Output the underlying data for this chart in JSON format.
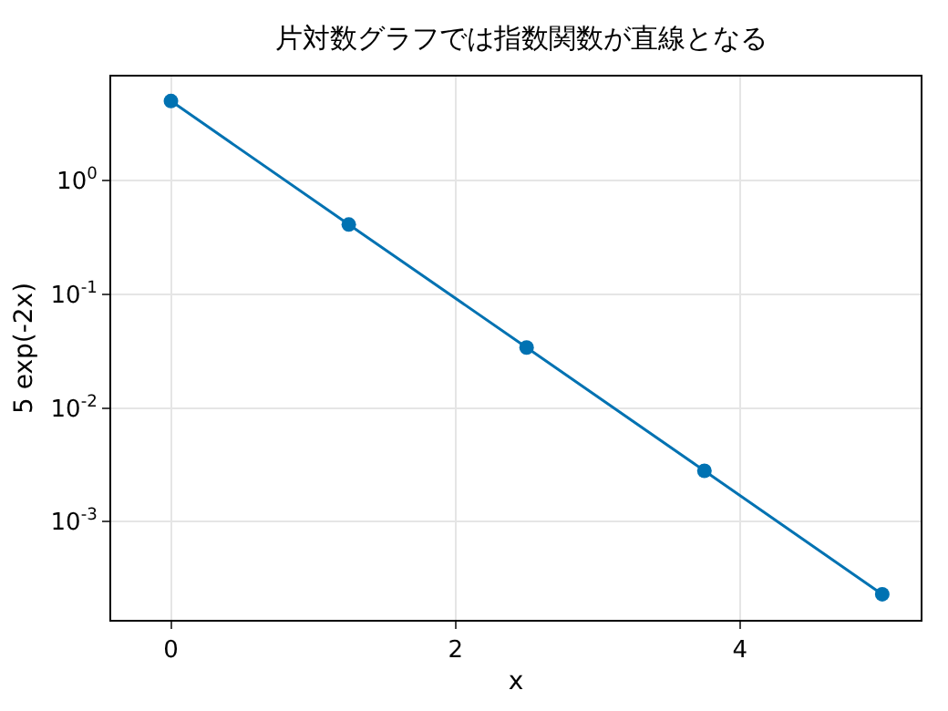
{
  "chart_data": {
    "type": "line",
    "title": "片対数グラフでは指数関数が直線となる",
    "xlabel": "x",
    "ylabel": "5 exp(-2x)",
    "x": [
      0,
      1.25,
      2.5,
      3.75,
      5
    ],
    "series": [
      {
        "color": "#0072b2",
        "values": [
          5,
          0.41,
          0.034,
          0.0028,
          0.00023
        ]
      }
    ],
    "log": "y",
    "xlim": [
      -0.42,
      5.27
    ],
    "xticks": [
      0,
      2,
      4
    ],
    "ylim": [
      0.000137,
      8.2
    ],
    "yticks": [
      {
        "value": 1,
        "label": "10$^{0}$"
      },
      {
        "value": 0.1,
        "label": "10$^{-1}$"
      },
      {
        "value": 0.01,
        "label": "10$^{-2}$"
      },
      {
        "value": 0.001,
        "label": "10$^{-3}$"
      }
    ],
    "grid": true,
    "marker": "circle",
    "line_style": "solid"
  }
}
